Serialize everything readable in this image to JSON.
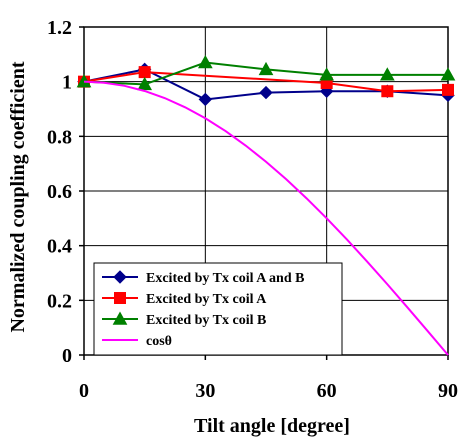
{
  "chart_data": {
    "type": "line",
    "title": "",
    "xlabel": "Tilt angle [degree]",
    "ylabel": "Normalized coupling coefficient",
    "xlim": [
      0,
      90
    ],
    "ylim": [
      0,
      1.2
    ],
    "x_ticks": [
      "0",
      "30",
      "60",
      "90"
    ],
    "y_ticks": [
      "0",
      "0.2",
      "0.4",
      "0.6",
      "0.8",
      "1",
      "1.2"
    ],
    "grid": true,
    "legend_position": "bottom-left",
    "series": [
      {
        "name": "Excited by Tx coil A and B",
        "color": "#00008b",
        "marker": "diamond",
        "x": [
          0,
          15,
          30,
          45,
          60,
          75,
          90
        ],
        "y": [
          1.0,
          1.045,
          0.935,
          0.96,
          0.965,
          0.965,
          0.95
        ]
      },
      {
        "name": "Excited by Tx coil A",
        "color": "#ff0000",
        "marker": "square",
        "x": [
          0,
          15,
          60,
          75,
          90
        ],
        "y": [
          1.0,
          1.035,
          0.995,
          0.965,
          0.97
        ]
      },
      {
        "name": "Excited by Tx coil B",
        "color": "#008000",
        "marker": "triangle",
        "x": [
          0,
          15,
          30,
          45,
          60,
          75,
          90
        ],
        "y": [
          1.0,
          0.99,
          1.07,
          1.045,
          1.025,
          1.025,
          1.025
        ]
      },
      {
        "name": "cosθ",
        "color": "#ff00ff",
        "marker": "none",
        "x": [
          0,
          5,
          10,
          15,
          20,
          25,
          30,
          35,
          40,
          45,
          50,
          55,
          60,
          65,
          70,
          75,
          80,
          85,
          90
        ],
        "y": [
          1.0,
          0.9962,
          0.9848,
          0.9659,
          0.9397,
          0.9063,
          0.866,
          0.8192,
          0.766,
          0.7071,
          0.6428,
          0.5736,
          0.5,
          0.4226,
          0.342,
          0.2588,
          0.1736,
          0.0872,
          0.0
        ]
      }
    ]
  }
}
